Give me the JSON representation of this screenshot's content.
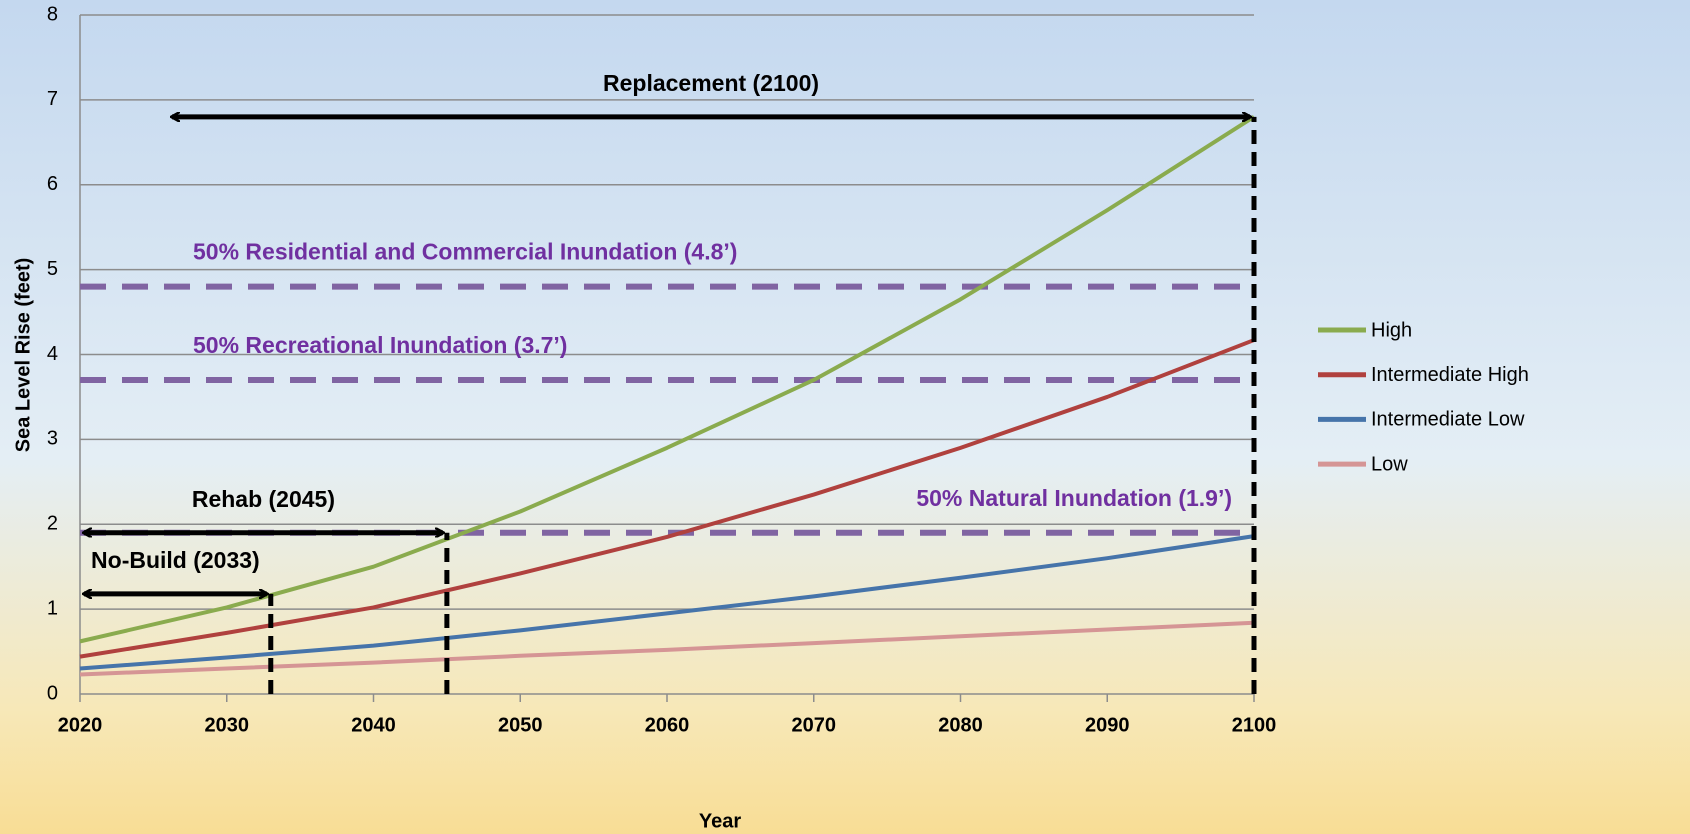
{
  "chart_data": {
    "type": "line",
    "x_label": "Year",
    "y_label": "Sea Level Rise (feet)",
    "x": [
      2020,
      2030,
      2040,
      2050,
      2060,
      2070,
      2080,
      2090,
      2100
    ],
    "series": [
      {
        "name": "High",
        "color": "#8aab4e",
        "values": [
          0.62,
          1.02,
          1.5,
          2.15,
          2.9,
          3.7,
          4.65,
          5.7,
          6.8
        ]
      },
      {
        "name": "Intermediate High",
        "color": "#b0413e",
        "values": [
          0.44,
          0.72,
          1.02,
          1.42,
          1.85,
          2.35,
          2.9,
          3.5,
          4.17
        ]
      },
      {
        "name": "Intermediate Low",
        "color": "#4674aa",
        "values": [
          0.3,
          0.43,
          0.57,
          0.75,
          0.95,
          1.15,
          1.37,
          1.6,
          1.86
        ]
      },
      {
        "name": "Low",
        "color": "#d59595",
        "values": [
          0.23,
          0.3,
          0.37,
          0.45,
          0.52,
          0.6,
          0.68,
          0.76,
          0.84
        ]
      }
    ],
    "thresholds": [
      {
        "label": "50% Residential and Commercial Inundation (4.8’)",
        "value": 4.8
      },
      {
        "label": "50% Recreational Inundation (3.7’)",
        "value": 3.7
      },
      {
        "label": "50% Natural Inundation (1.9’)",
        "value": 1.9
      }
    ],
    "threshold_color": "#8064a2",
    "annotations": [
      {
        "text": "Replacement (2100)",
        "x0": 2026,
        "x1": 2100,
        "y": 6.8
      },
      {
        "text": "Rehab (2045)",
        "x0": 2020,
        "x1": 2045,
        "y": 1.9
      },
      {
        "text": "No-Build (2033)",
        "x0": 2020,
        "x1": 2033,
        "y": 1.18
      }
    ],
    "xlim": [
      2020,
      2100
    ],
    "xticks": [
      2020,
      2030,
      2040,
      2050,
      2060,
      2070,
      2080,
      2090,
      2100
    ],
    "ylim": [
      0,
      8
    ],
    "yticks": [
      0,
      1,
      2,
      3,
      4,
      5,
      6,
      7,
      8
    ],
    "grid": true,
    "legend": "right"
  }
}
